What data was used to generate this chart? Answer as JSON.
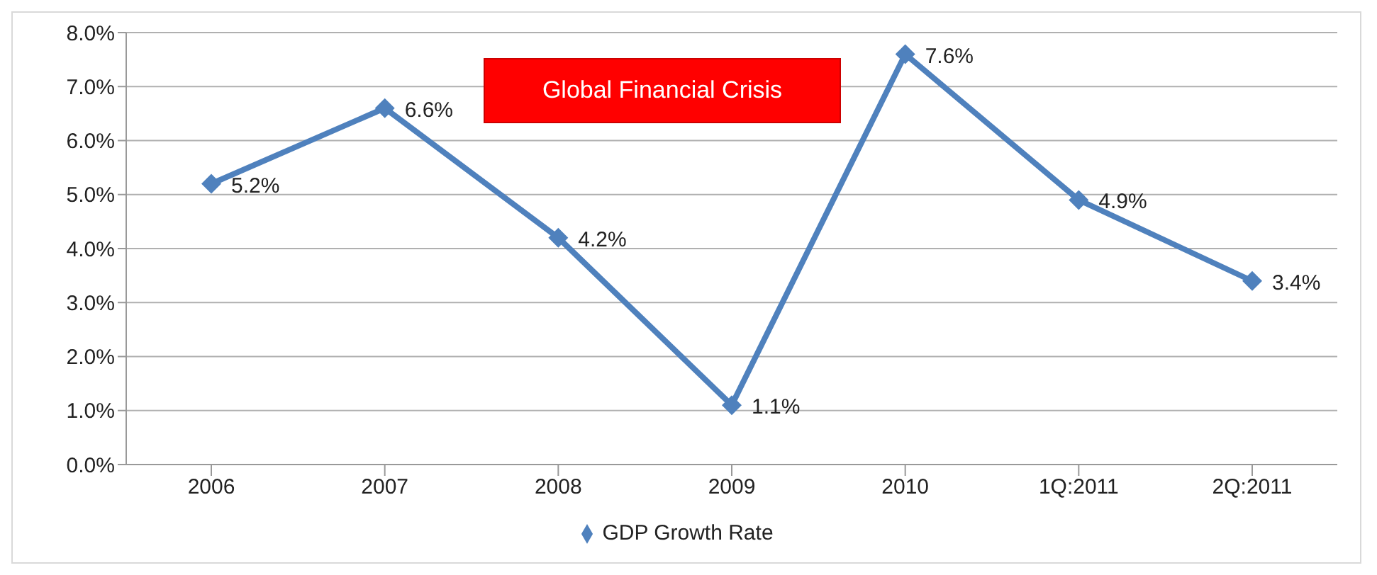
{
  "chart_data": {
    "type": "line",
    "categories": [
      "2006",
      "2007",
      "2008",
      "2009",
      "2010",
      "1Q:2011",
      "2Q:2011"
    ],
    "series": [
      {
        "name": "GDP Growth Rate",
        "color": "#4f81bd",
        "values": [
          5.2,
          6.6,
          4.2,
          1.1,
          7.6,
          4.9,
          3.4
        ],
        "value_labels": [
          "5.2%",
          "6.6%",
          "4.2%",
          "1.1%",
          "7.6%",
          "4.9%",
          "3.4%"
        ]
      }
    ],
    "ylim": [
      0,
      8
    ],
    "yticks": [
      {
        "value": 0,
        "label": "0.0%"
      },
      {
        "value": 1,
        "label": "1.0%"
      },
      {
        "value": 2,
        "label": "2.0%"
      },
      {
        "value": 3,
        "label": "3.0%"
      },
      {
        "value": 4,
        "label": "4.0%"
      },
      {
        "value": 5,
        "label": "5.0%"
      },
      {
        "value": 6,
        "label": "6.0%"
      },
      {
        "value": 7,
        "label": "7.0%"
      },
      {
        "value": 8,
        "label": "8.0%"
      }
    ],
    "grid": "y",
    "legend": "bottom",
    "marker": "diamond",
    "line_style": "solid",
    "annotations": [
      "Global Financial Crisis"
    ]
  }
}
